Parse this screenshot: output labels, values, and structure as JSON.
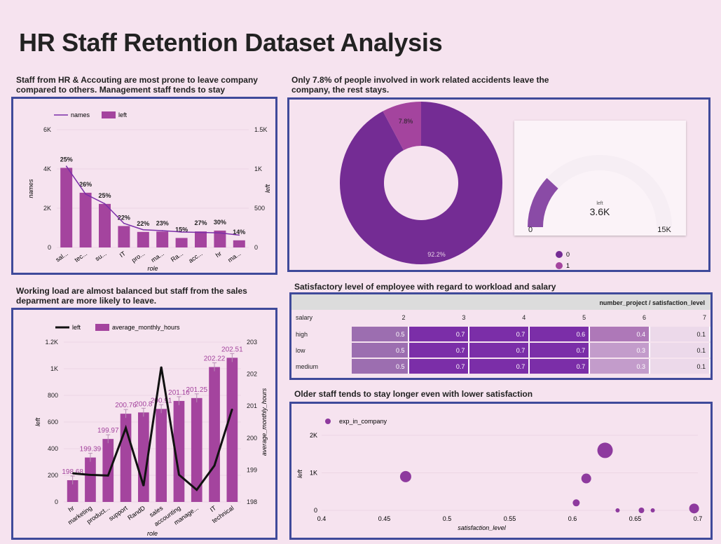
{
  "page": {
    "title": "HR Staff Retention Dataset Analysis"
  },
  "captions": {
    "dept": "Staff from HR & Accouting are most prone to leave company compared to others. Management staff tends to stay",
    "accident": "Only 7.8% of people involved in work related accidents leave the company, the rest stays.",
    "workload": "Working load are almost balanced but staff from the sales deparment are more likely to leave.",
    "heatmap": "Satisfactory level of employee with regard to workload and salary",
    "scatter": "Older staff tends to stay longer even with lower satisfaction"
  },
  "gauge": {
    "label": "left",
    "value_text": "3.6K",
    "min_label": "0",
    "max_label": "15K",
    "value": 3571,
    "max": 15000
  },
  "donut_legend": [
    "0",
    "1"
  ],
  "heatmap": {
    "header": "number_project / satisfaction_level",
    "row_header": "salary",
    "columns": [
      "2",
      "3",
      "4",
      "5",
      "6",
      "7"
    ],
    "rows": [
      {
        "label": "high",
        "values": [
          "0.5",
          "0.7",
          "0.7",
          "0.6",
          "0.4",
          "0.1"
        ]
      },
      {
        "label": "low",
        "values": [
          "0.5",
          "0.7",
          "0.7",
          "0.7",
          "0.3",
          "0.1"
        ]
      },
      {
        "label": "medium",
        "values": [
          "0.5",
          "0.7",
          "0.7",
          "0.7",
          "0.3",
          "0.1"
        ]
      }
    ]
  },
  "colors": {
    "bar": "#a4449e",
    "line_purple": "#7b2ea8",
    "donut_main": "#742c94",
    "donut_small": "#a4449e",
    "panel_border": "#3f4a9a",
    "background": "#f6e3ef"
  },
  "chart_data": [
    {
      "type": "bar",
      "categories": [
        "sal...",
        "tec...",
        "su...",
        "IT",
        "pro...",
        "ma...",
        "Ra...",
        "acc...",
        "hr",
        "ma..."
      ],
      "xlabel": "role",
      "series": [
        {
          "name": "names",
          "type": "line",
          "values": [
            4140,
            2720,
            2229,
            1227,
            902,
            858,
            787,
            767,
            739,
            630
          ]
        },
        {
          "name": "left",
          "type": "bar",
          "values": [
            1014,
            697,
            555,
            273,
            198,
            203,
            121,
            204,
            215,
            91
          ]
        }
      ],
      "data_labels": [
        "25%",
        "26%",
        "25%",
        "22%",
        "22%",
        "23%",
        "15%",
        "27%",
        "30%",
        "14%"
      ],
      "y_left": {
        "label": "names",
        "ticks": [
          "0",
          "2K",
          "4K",
          "6K"
        ],
        "lim": [
          0,
          6000
        ]
      },
      "y_right": {
        "label": "left",
        "ticks": [
          "0",
          "500",
          "1K",
          "1.5K"
        ],
        "lim": [
          0,
          1500
        ]
      },
      "legend": "top-left"
    },
    {
      "type": "pie",
      "labels": [
        "0",
        "1"
      ],
      "values": [
        92.2,
        7.8
      ],
      "slice_labels": [
        "92.2%",
        "7.8%"
      ],
      "donut": true,
      "legend": "bottom"
    },
    {
      "type": "bar",
      "categories": [
        "hr",
        "marketing",
        "product...",
        "support",
        "RandD",
        "sales",
        "accounting",
        "manage...",
        "IT",
        "technical"
      ],
      "xlabel": "role",
      "series": [
        {
          "name": "left",
          "type": "line",
          "values": [
            215,
            203,
            198,
            555,
            121,
            1014,
            204,
            91,
            273,
            697
          ]
        },
        {
          "name": "average_monthly_hours",
          "type": "bar",
          "values": [
            198.68,
            199.39,
            199.97,
            200.76,
            200.8,
            200.91,
            201.16,
            201.25,
            202.22,
            202.51
          ]
        }
      ],
      "data_labels": [
        "198.68",
        "199.39",
        "199.97",
        "200.76",
        "200.8",
        "200.91",
        "201.16",
        "201.25",
        "202.22",
        "202.51"
      ],
      "y_left": {
        "label": "left",
        "ticks": [
          "0",
          "200",
          "400",
          "600",
          "800",
          "1K",
          "1.2K"
        ],
        "lim": [
          0,
          1200
        ]
      },
      "y_right": {
        "label": "average_monthly_hours",
        "ticks": [
          "198",
          "199",
          "200",
          "201",
          "202",
          "203"
        ],
        "lim": [
          198,
          203
        ]
      },
      "legend": "top-left"
    },
    {
      "type": "scatter",
      "xlabel": "satisfaction_level",
      "ylabel": "left",
      "xlim": [
        0.4,
        0.7
      ],
      "ylim": [
        0,
        2000
      ],
      "x_ticks": [
        "0.4",
        "0.45",
        "0.5",
        "0.55",
        "0.6",
        "0.65",
        "0.7"
      ],
      "y_ticks": [
        "0",
        "1K",
        "2K"
      ],
      "series": [
        {
          "name": "exp_in_company",
          "points": [
            {
              "x": 0.467,
              "y": 900,
              "size": 8
            },
            {
              "x": 0.626,
              "y": 1600,
              "size": 11
            },
            {
              "x": 0.611,
              "y": 850,
              "size": 7
            },
            {
              "x": 0.603,
              "y": 200,
              "size": 5
            },
            {
              "x": 0.636,
              "y": 0,
              "size": 3
            },
            {
              "x": 0.655,
              "y": 0,
              "size": 4
            },
            {
              "x": 0.664,
              "y": 0,
              "size": 3
            },
            {
              "x": 0.697,
              "y": 50,
              "size": 7
            }
          ]
        }
      ],
      "legend": "top-left"
    }
  ]
}
